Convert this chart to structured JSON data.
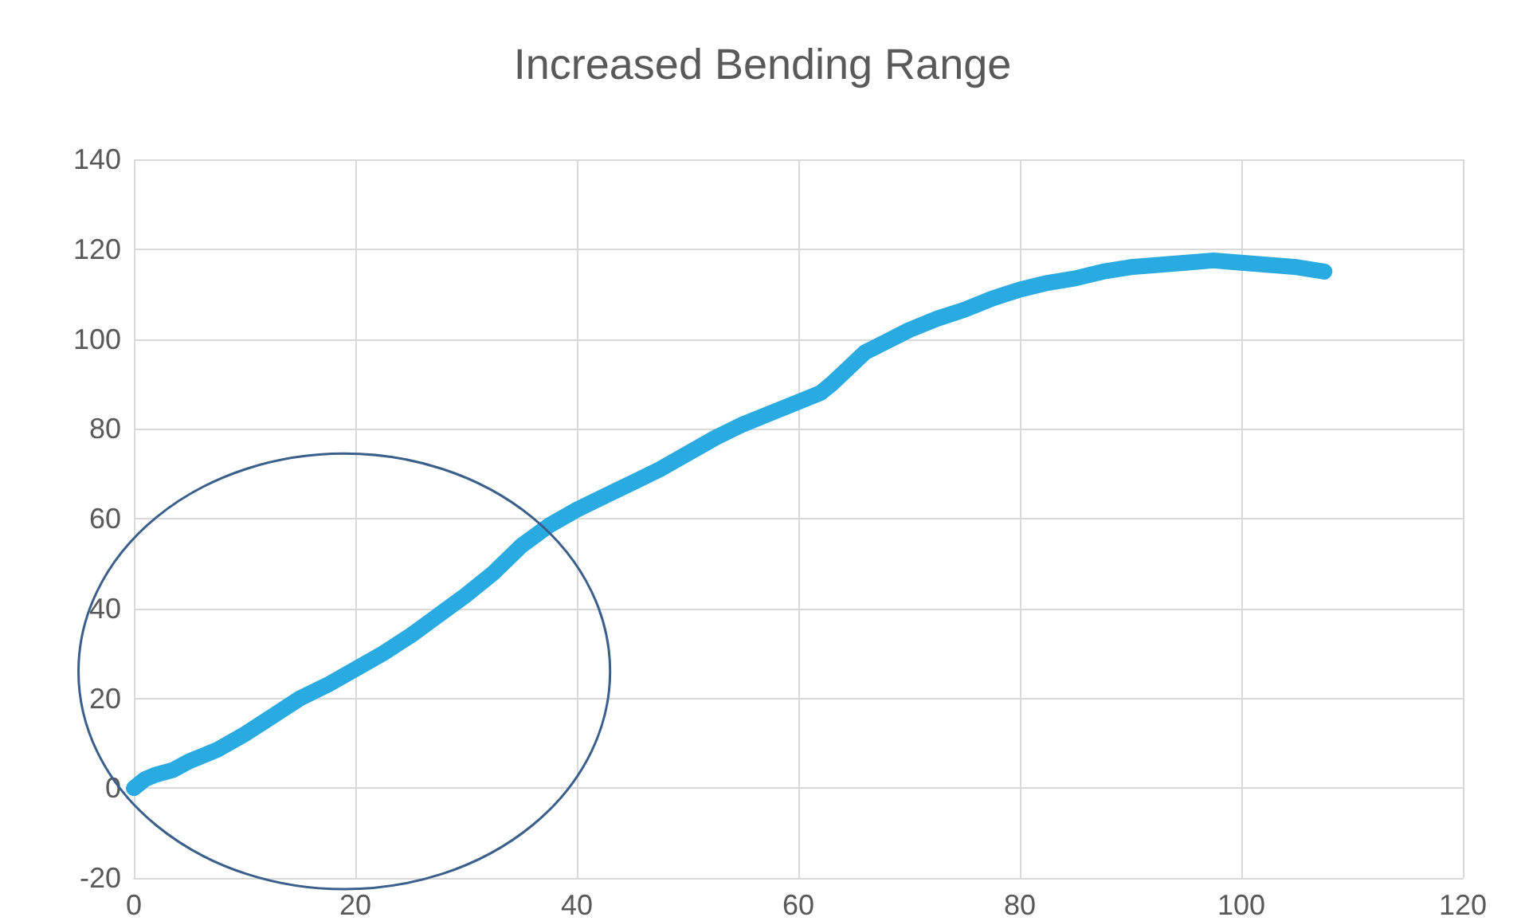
{
  "chart_data": {
    "type": "line",
    "title": "Increased Bending Range",
    "x": [
      0,
      1,
      2,
      3.5,
      5,
      7.5,
      10,
      12.5,
      15,
      17.5,
      20,
      22.5,
      25,
      27.5,
      30,
      32.5,
      35,
      37.5,
      40,
      42.5,
      45,
      47.5,
      50,
      52.5,
      55,
      57.5,
      60,
      62,
      63,
      64.5,
      66,
      68,
      70,
      72.5,
      75,
      77.5,
      80,
      82.5,
      85,
      87.5,
      90,
      92.5,
      95,
      97.5,
      100,
      102.5,
      105,
      107.5
    ],
    "series": [
      {
        "color": "#29abe2",
        "values": [
          0,
          2,
          3,
          4,
          6,
          8.5,
          12,
          16,
          20,
          23,
          26.5,
          30,
          34,
          38.5,
          43,
          48,
          54,
          58.5,
          62,
          65,
          68,
          71,
          74.5,
          78,
          81,
          83.5,
          86,
          88,
          90,
          93.5,
          97,
          99.5,
          102,
          104.5,
          106.5,
          109,
          111,
          112.5,
          113.5,
          115,
          116,
          116.5,
          117,
          117.5,
          117,
          116.5,
          116,
          115
        ]
      }
    ],
    "xlim": [
      0,
      120
    ],
    "xticks": [
      0,
      20,
      40,
      60,
      80,
      100,
      120
    ],
    "ylim": [
      -20,
      140
    ],
    "yticks": [
      -20,
      0,
      20,
      40,
      60,
      80,
      100,
      120,
      140
    ],
    "grid": true
  }
}
